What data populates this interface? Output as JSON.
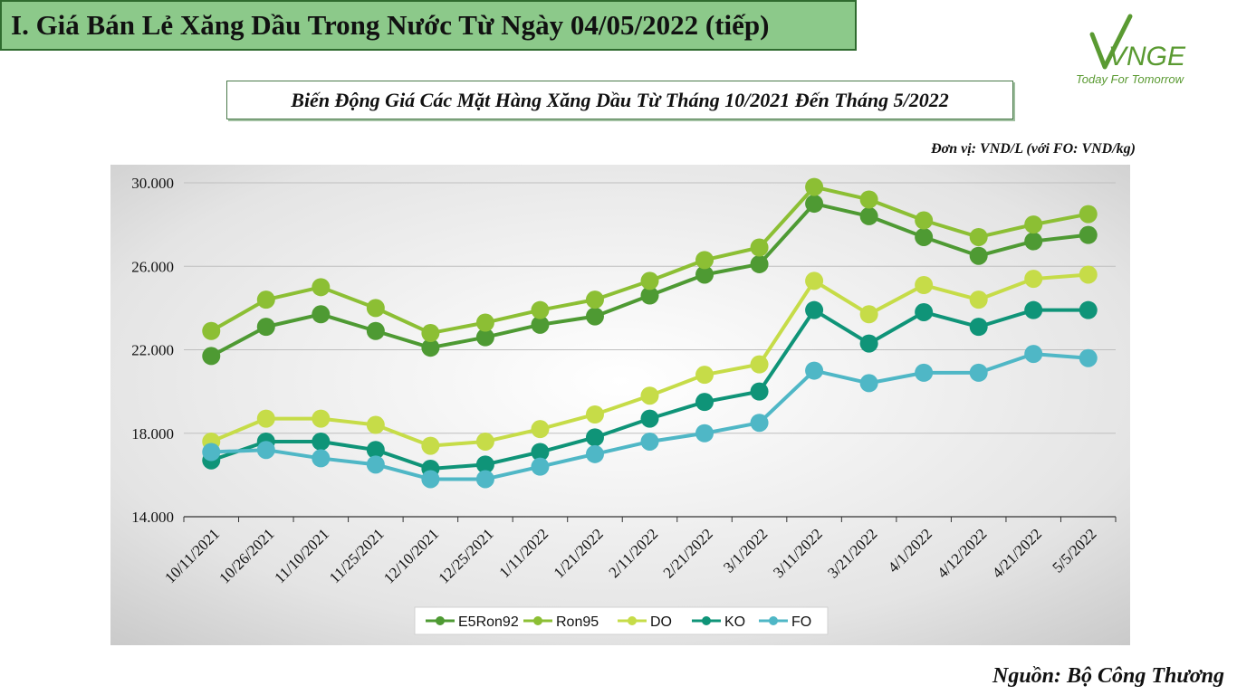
{
  "header": {
    "title": "I. Giá Bán Lẻ Xăng Dầu Trong Nước Từ Ngày 04/05/2022 (tiếp)"
  },
  "logo": {
    "text": "VNGE",
    "tagline": "Today For Tomorrow"
  },
  "subtitle": "Biến Động Giá Các Mặt Hàng Xăng Dầu Từ Tháng 10/2021 Đến Tháng 5/2022",
  "unit_note": "Đơn vị: VND/L (với FO: VND/kg)",
  "source": "Nguồn: Bộ Công Thương",
  "colors": {
    "E5Ron92": "#4e9a33",
    "Ron95": "#8cbf34",
    "DO": "#c6dc48",
    "KO": "#0f9478",
    "FO": "#4fb7c6",
    "title_bg": "#8cc98a"
  },
  "chart_data": {
    "type": "line",
    "title": "",
    "xlabel": "",
    "ylabel": "",
    "ylim": [
      14000,
      30000
    ],
    "yticks": [
      "14.000",
      "18.000",
      "22.000",
      "26.000",
      "30.000"
    ],
    "ytick_values": [
      14000,
      18000,
      22000,
      26000,
      30000
    ],
    "grid": true,
    "legend_position": "bottom",
    "categories": [
      "10/11/2021",
      "10/26/2021",
      "11/10/2021",
      "11/25/2021",
      "12/10/2021",
      "12/25/2021",
      "1/11/2022",
      "1/21/2022",
      "2/11/2022",
      "2/21/2022",
      "3/1/2022",
      "3/11/2022",
      "3/21/2022",
      "4/1/2022",
      "4/12/2022",
      "4/21/2022",
      "5/5/2022"
    ],
    "series": [
      {
        "name": "E5Ron92",
        "values": [
          21700,
          23100,
          23700,
          22900,
          22100,
          22600,
          23200,
          23600,
          24600,
          25600,
          26100,
          29000,
          28400,
          27400,
          26500,
          27200,
          27500
        ]
      },
      {
        "name": "Ron95",
        "values": [
          22900,
          24400,
          25000,
          24000,
          22800,
          23300,
          23900,
          24400,
          25300,
          26300,
          26900,
          29800,
          29200,
          28200,
          27400,
          28000,
          28500
        ]
      },
      {
        "name": "DO",
        "values": [
          17600,
          18700,
          18700,
          18400,
          17400,
          17600,
          18200,
          18900,
          19800,
          20800,
          21300,
          25300,
          23700,
          25100,
          24400,
          25400,
          25600
        ]
      },
      {
        "name": "KO",
        "values": [
          16700,
          17600,
          17600,
          17200,
          16300,
          16500,
          17100,
          17800,
          18700,
          19500,
          20000,
          23900,
          22300,
          23800,
          23100,
          23900,
          23900
        ]
      },
      {
        "name": "FO",
        "values": [
          17100,
          17200,
          16800,
          16500,
          15800,
          15800,
          16400,
          17000,
          17600,
          18000,
          18500,
          21000,
          20400,
          20900,
          20900,
          21800,
          21600
        ]
      }
    ]
  }
}
